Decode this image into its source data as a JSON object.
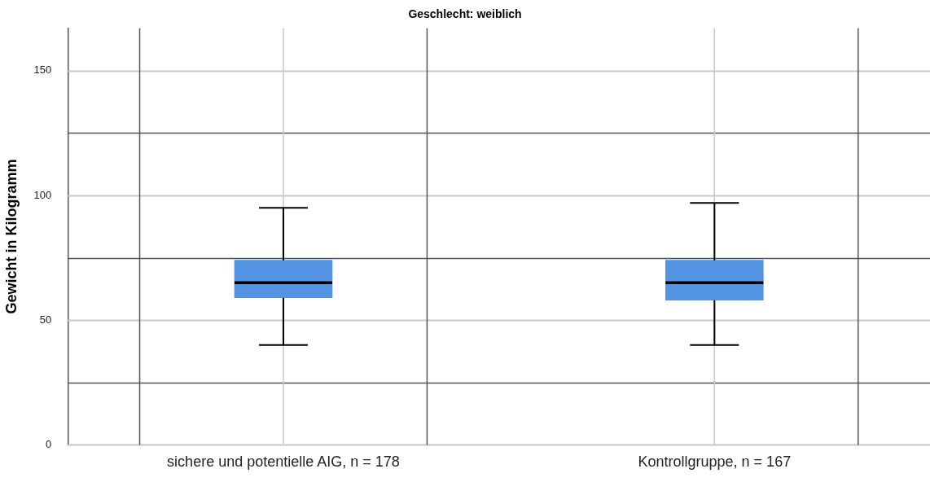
{
  "chart_data": {
    "type": "box",
    "title": "Geschlecht: weiblich",
    "ylabel": "Gewicht in Kilogramm",
    "categories": [
      "sichere und potentielle AIG, n = 178",
      "Kontrollgruppe, n = 167"
    ],
    "boxes": [
      {
        "low": 40,
        "q1": 59,
        "median": 65,
        "q3": 74,
        "high": 95
      },
      {
        "low": 40,
        "q1": 58,
        "median": 65,
        "q3": 74,
        "high": 97
      }
    ],
    "color": "#5294e2",
    "ylim": [
      0,
      167
    ],
    "yticks": [
      0,
      {
        "value": 25,
        "label": null
      },
      50,
      {
        "value": 75,
        "label": null
      },
      100,
      {
        "value": 125,
        "label": null
      },
      150
    ],
    "grid": true
  }
}
